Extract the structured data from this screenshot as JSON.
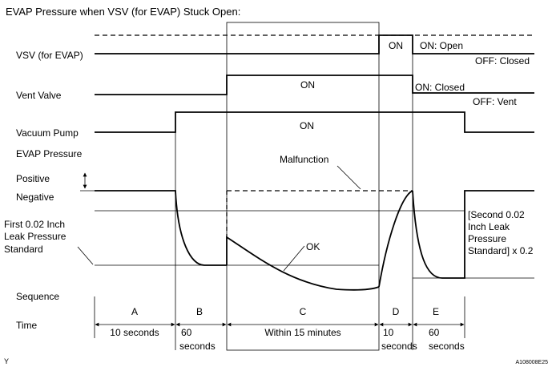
{
  "title": "EVAP Pressure when VSV (for EVAP) Stuck Open:",
  "row_labels": {
    "vsv": "VSV (for EVAP)",
    "vent_valve": "Vent Valve",
    "vacuum_pump": "Vacuum Pump",
    "evap_pressure": "EVAP Pressure",
    "positive": "Positive",
    "negative": "Negative",
    "first_standard_1": "First 0.02 Inch",
    "first_standard_2": "Leak Pressure",
    "first_standard_3": "Standard",
    "sequence": "Sequence",
    "time": "Time"
  },
  "on_labels": {
    "vsv_on": "ON",
    "vent_on": "ON",
    "pump_on": "ON"
  },
  "state_labels": {
    "vsv_open": "ON: Open",
    "vsv_closed": "OFF: Closed",
    "vent_closed": "ON: Closed",
    "vent_vent": "OFF: Vent"
  },
  "annotations": {
    "malfunction": "Malfunction",
    "ok": "OK",
    "second_standard_1": "[Second 0.02",
    "second_standard_2": "Inch Leak",
    "second_standard_3": "Pressure",
    "second_standard_4": "Standard] x 0.2"
  },
  "sequence": [
    "A",
    "B",
    "C",
    "D",
    "E"
  ],
  "times": {
    "a": "10 seconds",
    "b_1": "60",
    "b_2": "seconds",
    "c": "Within 15 minutes",
    "d_1": "10",
    "d_2": "seconds",
    "e_1": "60",
    "e_2": "seconds"
  },
  "footer": {
    "left": "Y",
    "right": "A108008E25"
  }
}
